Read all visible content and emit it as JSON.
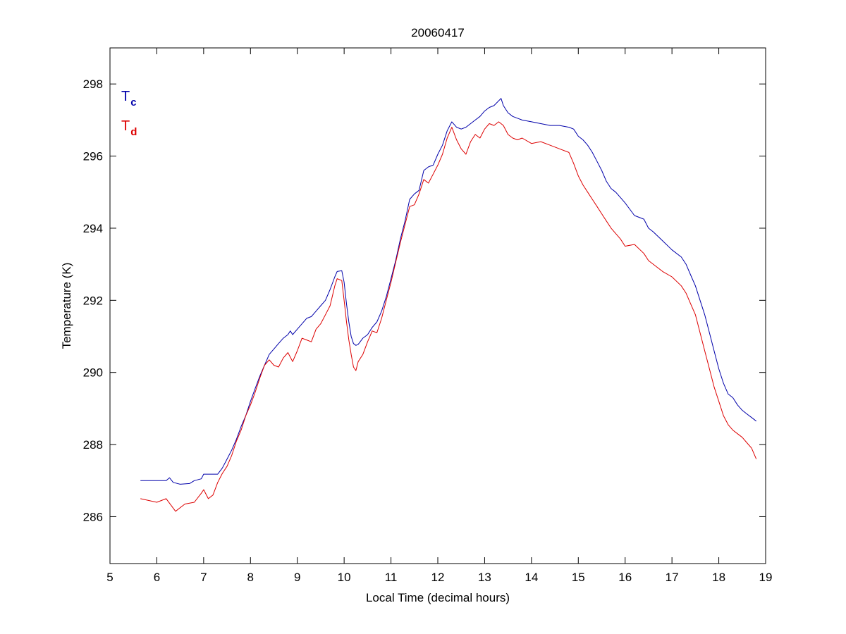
{
  "chart_data": {
    "type": "line",
    "title": "20060417",
    "xlabel": "Local Time (decimal hours)",
    "ylabel": "Temperature (K)",
    "xlim": [
      5,
      19
    ],
    "ylim": [
      284.7,
      299
    ],
    "xticks": [
      5,
      6,
      7,
      8,
      9,
      10,
      11,
      12,
      13,
      14,
      15,
      16,
      17,
      18,
      19
    ],
    "yticks": [
      286,
      288,
      290,
      292,
      294,
      296,
      298
    ],
    "grid": false,
    "legend_position": "top-left",
    "series": [
      {
        "name": "T",
        "subscript": "c",
        "color": "#0000aa",
        "points": [
          [
            5.65,
            287.0
          ],
          [
            6.0,
            287.0
          ],
          [
            6.2,
            287.0
          ],
          [
            6.27,
            287.08
          ],
          [
            6.35,
            286.95
          ],
          [
            6.5,
            286.9
          ],
          [
            6.7,
            286.92
          ],
          [
            6.8,
            287.0
          ],
          [
            6.95,
            287.05
          ],
          [
            7.0,
            287.18
          ],
          [
            7.3,
            287.18
          ],
          [
            7.4,
            287.35
          ],
          [
            7.5,
            287.6
          ],
          [
            7.6,
            287.85
          ],
          [
            7.7,
            288.15
          ],
          [
            7.8,
            288.5
          ],
          [
            7.9,
            288.8
          ],
          [
            8.0,
            289.2
          ],
          [
            8.1,
            289.55
          ],
          [
            8.2,
            289.9
          ],
          [
            8.3,
            290.2
          ],
          [
            8.4,
            290.5
          ],
          [
            8.5,
            290.65
          ],
          [
            8.6,
            290.8
          ],
          [
            8.7,
            290.95
          ],
          [
            8.8,
            291.05
          ],
          [
            8.85,
            291.15
          ],
          [
            8.9,
            291.05
          ],
          [
            9.0,
            291.2
          ],
          [
            9.1,
            291.35
          ],
          [
            9.2,
            291.5
          ],
          [
            9.3,
            291.55
          ],
          [
            9.4,
            291.7
          ],
          [
            9.5,
            291.85
          ],
          [
            9.6,
            292.0
          ],
          [
            9.7,
            292.3
          ],
          [
            9.8,
            292.65
          ],
          [
            9.85,
            292.8
          ],
          [
            9.95,
            292.82
          ],
          [
            10.0,
            292.5
          ],
          [
            10.05,
            291.9
          ],
          [
            10.1,
            291.4
          ],
          [
            10.15,
            291.0
          ],
          [
            10.2,
            290.8
          ],
          [
            10.25,
            290.75
          ],
          [
            10.3,
            290.78
          ],
          [
            10.4,
            290.95
          ],
          [
            10.5,
            291.05
          ],
          [
            10.6,
            291.25
          ],
          [
            10.7,
            291.4
          ],
          [
            10.8,
            291.7
          ],
          [
            10.9,
            292.1
          ],
          [
            11.0,
            292.6
          ],
          [
            11.1,
            293.1
          ],
          [
            11.2,
            293.7
          ],
          [
            11.3,
            294.2
          ],
          [
            11.4,
            294.8
          ],
          [
            11.5,
            294.95
          ],
          [
            11.6,
            295.05
          ],
          [
            11.7,
            295.6
          ],
          [
            11.8,
            295.7
          ],
          [
            11.9,
            295.75
          ],
          [
            12.0,
            296.05
          ],
          [
            12.1,
            296.3
          ],
          [
            12.2,
            296.7
          ],
          [
            12.3,
            296.95
          ],
          [
            12.4,
            296.8
          ],
          [
            12.5,
            296.75
          ],
          [
            12.6,
            296.8
          ],
          [
            12.7,
            296.9
          ],
          [
            12.8,
            297.0
          ],
          [
            12.9,
            297.1
          ],
          [
            13.0,
            297.25
          ],
          [
            13.1,
            297.35
          ],
          [
            13.2,
            297.4
          ],
          [
            13.35,
            297.6
          ],
          [
            13.4,
            297.4
          ],
          [
            13.5,
            297.2
          ],
          [
            13.6,
            297.1
          ],
          [
            13.7,
            297.05
          ],
          [
            13.8,
            297.0
          ],
          [
            14.0,
            296.95
          ],
          [
            14.2,
            296.9
          ],
          [
            14.4,
            296.85
          ],
          [
            14.6,
            296.85
          ],
          [
            14.8,
            296.8
          ],
          [
            14.9,
            296.75
          ],
          [
            15.0,
            296.55
          ],
          [
            15.1,
            296.45
          ],
          [
            15.2,
            296.3
          ],
          [
            15.3,
            296.1
          ],
          [
            15.4,
            295.85
          ],
          [
            15.5,
            295.6
          ],
          [
            15.6,
            295.3
          ],
          [
            15.7,
            295.1
          ],
          [
            15.8,
            295.0
          ],
          [
            15.9,
            294.85
          ],
          [
            16.0,
            294.7
          ],
          [
            16.2,
            294.35
          ],
          [
            16.4,
            294.25
          ],
          [
            16.5,
            294.0
          ],
          [
            16.6,
            293.9
          ],
          [
            16.8,
            293.65
          ],
          [
            17.0,
            293.4
          ],
          [
            17.2,
            293.2
          ],
          [
            17.3,
            293.0
          ],
          [
            17.4,
            292.7
          ],
          [
            17.5,
            292.4
          ],
          [
            17.6,
            292.0
          ],
          [
            17.7,
            291.6
          ],
          [
            17.8,
            291.1
          ],
          [
            17.9,
            290.6
          ],
          [
            18.0,
            290.1
          ],
          [
            18.1,
            289.7
          ],
          [
            18.2,
            289.4
          ],
          [
            18.3,
            289.3
          ],
          [
            18.4,
            289.1
          ],
          [
            18.5,
            288.95
          ],
          [
            18.6,
            288.85
          ],
          [
            18.7,
            288.75
          ],
          [
            18.8,
            288.65
          ]
        ]
      },
      {
        "name": "T",
        "subscript": "d",
        "color": "#dd0000",
        "points": [
          [
            5.65,
            286.5
          ],
          [
            6.0,
            286.4
          ],
          [
            6.2,
            286.5
          ],
          [
            6.4,
            286.15
          ],
          [
            6.6,
            286.35
          ],
          [
            6.8,
            286.4
          ],
          [
            6.95,
            286.65
          ],
          [
            7.0,
            286.75
          ],
          [
            7.1,
            286.5
          ],
          [
            7.2,
            286.6
          ],
          [
            7.3,
            286.95
          ],
          [
            7.4,
            287.2
          ],
          [
            7.5,
            287.4
          ],
          [
            7.6,
            287.7
          ],
          [
            7.7,
            288.1
          ],
          [
            7.8,
            288.4
          ],
          [
            7.9,
            288.8
          ],
          [
            8.0,
            289.1
          ],
          [
            8.1,
            289.45
          ],
          [
            8.2,
            289.85
          ],
          [
            8.3,
            290.2
          ],
          [
            8.4,
            290.35
          ],
          [
            8.5,
            290.2
          ],
          [
            8.6,
            290.15
          ],
          [
            8.7,
            290.4
          ],
          [
            8.8,
            290.55
          ],
          [
            8.9,
            290.3
          ],
          [
            9.0,
            290.6
          ],
          [
            9.1,
            290.95
          ],
          [
            9.2,
            290.9
          ],
          [
            9.3,
            290.85
          ],
          [
            9.4,
            291.2
          ],
          [
            9.5,
            291.35
          ],
          [
            9.6,
            291.6
          ],
          [
            9.7,
            291.85
          ],
          [
            9.8,
            292.4
          ],
          [
            9.85,
            292.6
          ],
          [
            9.95,
            292.55
          ],
          [
            10.0,
            292.0
          ],
          [
            10.05,
            291.4
          ],
          [
            10.1,
            290.9
          ],
          [
            10.15,
            290.5
          ],
          [
            10.2,
            290.15
          ],
          [
            10.25,
            290.05
          ],
          [
            10.3,
            290.3
          ],
          [
            10.4,
            290.5
          ],
          [
            10.5,
            290.85
          ],
          [
            10.6,
            291.15
          ],
          [
            10.7,
            291.1
          ],
          [
            10.8,
            291.5
          ],
          [
            10.9,
            292.0
          ],
          [
            11.0,
            292.5
          ],
          [
            11.1,
            293.05
          ],
          [
            11.2,
            293.6
          ],
          [
            11.3,
            294.1
          ],
          [
            11.4,
            294.6
          ],
          [
            11.5,
            294.65
          ],
          [
            11.6,
            294.95
          ],
          [
            11.7,
            295.35
          ],
          [
            11.8,
            295.25
          ],
          [
            11.9,
            295.5
          ],
          [
            12.0,
            295.75
          ],
          [
            12.1,
            296.05
          ],
          [
            12.2,
            296.5
          ],
          [
            12.3,
            296.8
          ],
          [
            12.4,
            296.45
          ],
          [
            12.5,
            296.2
          ],
          [
            12.6,
            296.05
          ],
          [
            12.7,
            296.4
          ],
          [
            12.8,
            296.6
          ],
          [
            12.9,
            296.5
          ],
          [
            13.0,
            296.75
          ],
          [
            13.1,
            296.9
          ],
          [
            13.2,
            296.85
          ],
          [
            13.3,
            296.95
          ],
          [
            13.4,
            296.85
          ],
          [
            13.5,
            296.6
          ],
          [
            13.6,
            296.5
          ],
          [
            13.7,
            296.45
          ],
          [
            13.8,
            296.5
          ],
          [
            14.0,
            296.35
          ],
          [
            14.2,
            296.4
          ],
          [
            14.4,
            296.3
          ],
          [
            14.6,
            296.2
          ],
          [
            14.8,
            296.1
          ],
          [
            14.9,
            295.8
          ],
          [
            15.0,
            295.45
          ],
          [
            15.1,
            295.2
          ],
          [
            15.2,
            295.0
          ],
          [
            15.3,
            294.8
          ],
          [
            15.4,
            294.6
          ],
          [
            15.5,
            294.4
          ],
          [
            15.6,
            294.2
          ],
          [
            15.7,
            294.0
          ],
          [
            15.8,
            293.85
          ],
          [
            15.9,
            293.7
          ],
          [
            16.0,
            293.5
          ],
          [
            16.2,
            293.55
          ],
          [
            16.4,
            293.3
          ],
          [
            16.5,
            293.1
          ],
          [
            16.6,
            293.0
          ],
          [
            16.8,
            292.8
          ],
          [
            17.0,
            292.65
          ],
          [
            17.2,
            292.4
          ],
          [
            17.3,
            292.2
          ],
          [
            17.4,
            291.9
          ],
          [
            17.5,
            291.6
          ],
          [
            17.6,
            291.1
          ],
          [
            17.7,
            290.6
          ],
          [
            17.8,
            290.1
          ],
          [
            17.9,
            289.6
          ],
          [
            18.0,
            289.2
          ],
          [
            18.1,
            288.8
          ],
          [
            18.2,
            288.55
          ],
          [
            18.3,
            288.4
          ],
          [
            18.4,
            288.3
          ],
          [
            18.5,
            288.2
          ],
          [
            18.6,
            288.05
          ],
          [
            18.7,
            287.9
          ],
          [
            18.8,
            287.6
          ]
        ]
      }
    ]
  }
}
